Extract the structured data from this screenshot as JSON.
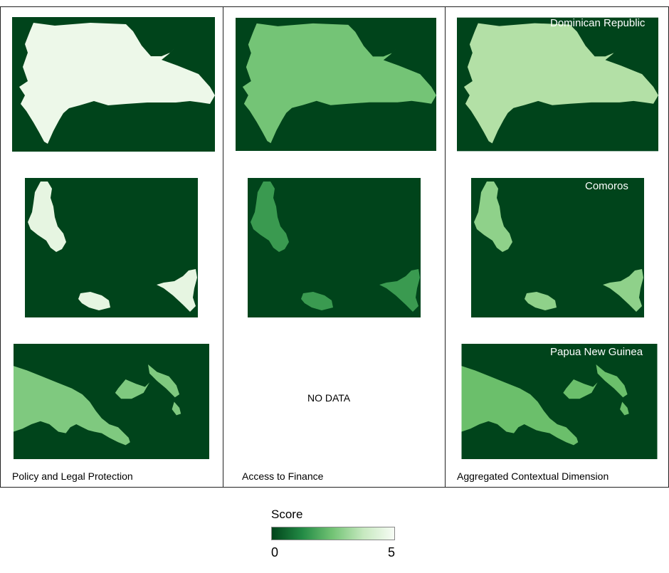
{
  "colors": {
    "background_sea": "#00441b",
    "score_0": "#00441b",
    "score_5": "#f7fcf5"
  },
  "panels": [
    {
      "title": "Policy and Legal Protection",
      "maps": [
        {
          "country": "Dominican Republic",
          "fill": "#edf8e9",
          "label": ""
        },
        {
          "country": "Comoros",
          "fill": "#e6f5e1",
          "label": ""
        },
        {
          "country": "Papua New Guinea",
          "fill": "#7fc97f",
          "label": ""
        }
      ]
    },
    {
      "title": "Access to Finance",
      "maps": [
        {
          "country": "Dominican Republic",
          "fill": "#74c476",
          "label": ""
        },
        {
          "country": "Comoros",
          "fill": "#3a9a50",
          "label": ""
        }
      ],
      "no_data": "NO DATA"
    },
    {
      "title": "Aggregated Contextual Dimension",
      "maps": [
        {
          "country": "Dominican Republic",
          "fill": "#b3e0a6",
          "label": "Dominican Republic"
        },
        {
          "country": "Comoros",
          "fill": "#8fd18a",
          "label": "Comoros"
        },
        {
          "country": "Papua New Guinea",
          "fill": "#6bbf6b",
          "label": "Papua New Guinea"
        }
      ]
    }
  ],
  "legend": {
    "title": "Score",
    "min_label": "0",
    "max_label": "5"
  }
}
